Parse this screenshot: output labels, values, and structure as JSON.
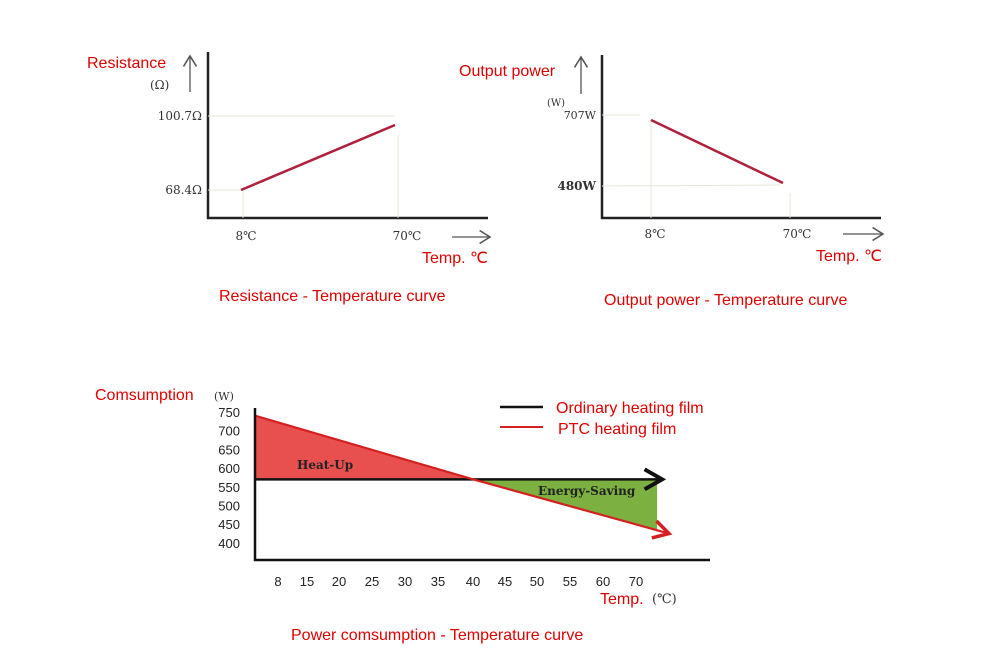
{
  "chart_data": [
    {
      "type": "line",
      "title": "Resistance - Temperature curve",
      "ylabel": "Resistance",
      "yunit": "(Ω)",
      "xlabel": "Temp. ℃",
      "x_ticks": [
        "8℃",
        "70℃"
      ],
      "y_ticks": [
        "68.4Ω",
        "100.7Ω"
      ],
      "x": [
        8,
        70
      ],
      "values": [
        68.4,
        100.7
      ],
      "color": "#b0203a"
    },
    {
      "type": "line",
      "title": "Output power - Temperature curve",
      "ylabel": "Output power",
      "yunit": "(W)",
      "xlabel": "Temp. ℃",
      "x_ticks": [
        "8℃",
        "70℃"
      ],
      "y_ticks": [
        "480W",
        "707W"
      ],
      "x": [
        8,
        70
      ],
      "values": [
        707,
        480
      ],
      "color": "#b0203a"
    },
    {
      "type": "line",
      "title": "Power comsumption - Temperature curve",
      "ylabel": "Comsumption",
      "yunit": "(W)",
      "xlabel": "Temp.",
      "xunit": "(℃)",
      "x_ticks": [
        "8",
        "15",
        "20",
        "25",
        "30",
        "35",
        "40",
        "45",
        "50",
        "55",
        "60",
        "70"
      ],
      "y_ticks": [
        "750",
        "700",
        "650",
        "600",
        "550",
        "500",
        "450",
        "400"
      ],
      "ylim": [
        400,
        750
      ],
      "legend": "top-right",
      "series": [
        {
          "name": "Ordinary heating film",
          "x": [
            3,
            77
          ],
          "values": [
            570,
            570
          ],
          "color": "#111111"
        },
        {
          "name": "PTC heating film",
          "x": [
            3,
            40,
            80
          ],
          "values": [
            740,
            570,
            425
          ],
          "color": "#d42020"
        }
      ],
      "annotations": [
        {
          "text": "Heat-Up",
          "color": "#e85050"
        },
        {
          "text": "Energy-Saving",
          "color": "#7cb040"
        }
      ]
    }
  ]
}
